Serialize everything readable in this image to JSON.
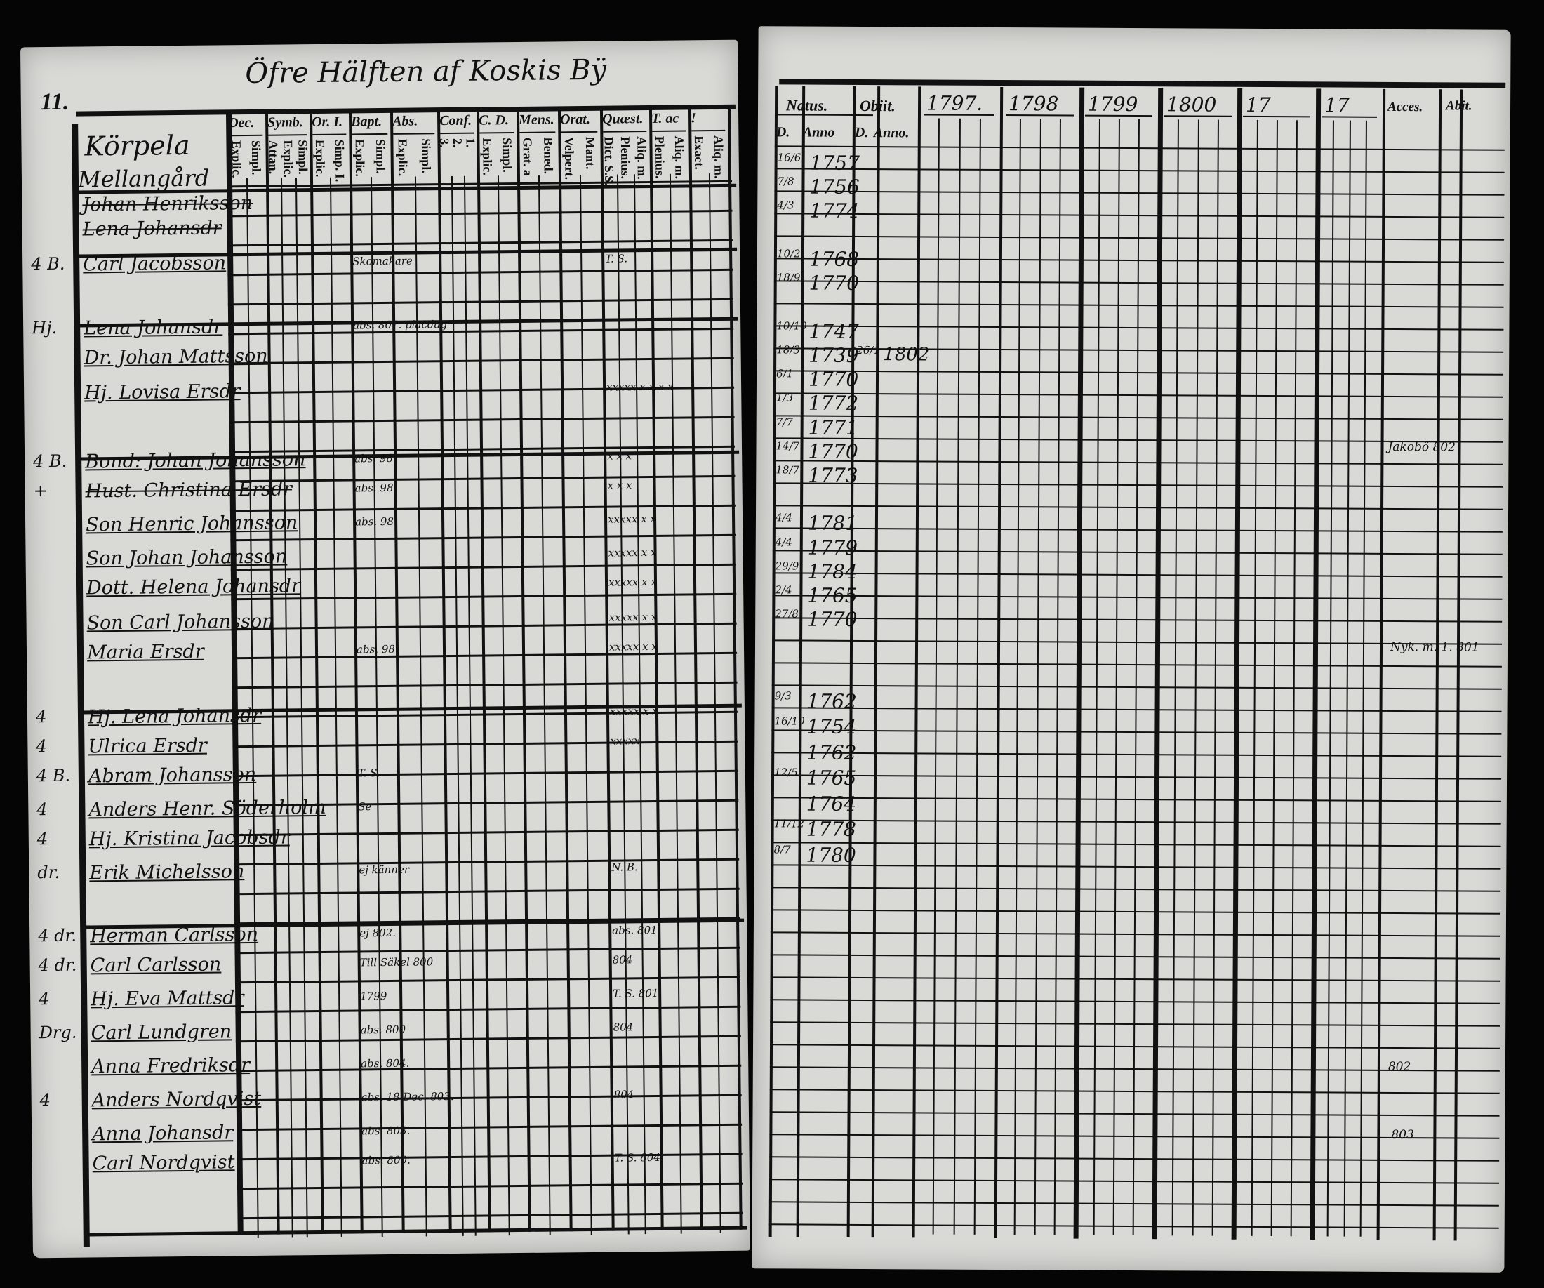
{
  "left_page": {
    "folio": "11.",
    "title": "Öfre Hälften af Koskis Bÿ",
    "farm": [
      "Körpela",
      "Mellangård"
    ],
    "columns": [
      {
        "head": "Dec.",
        "sub": [
          "Simpl.",
          "Explic."
        ]
      },
      {
        "head": "Symb.",
        "sub": [
          "Simpl.",
          "Explic.",
          "Attan."
        ]
      },
      {
        "head": "Or. I.",
        "sub": [
          "Simp. I.",
          "Explic."
        ]
      },
      {
        "head": "Bapt.",
        "sub": [
          "Simpl.",
          "Explic."
        ]
      },
      {
        "head": "Abs.",
        "sub": [
          "Simpl.",
          "Explic."
        ]
      },
      {
        "head": "Conf.",
        "sub": [
          "1.",
          "2.",
          "3."
        ]
      },
      {
        "head": "C. D.",
        "sub": [
          "Simpl.",
          "Explic."
        ]
      },
      {
        "head": "Mens.",
        "sub": [
          "Bened.",
          "Grat. a"
        ]
      },
      {
        "head": "Orat.",
        "sub": [
          "Mant.",
          "Velpert."
        ]
      },
      {
        "head": "Quæst.",
        "sub": [
          "Aliq. m.",
          "Plenius.",
          "Dict. S.S."
        ]
      },
      {
        "head": "T. ac",
        "sub": [
          "Aliq. m.",
          "Plenius."
        ]
      },
      {
        "head": "!",
        "sub": [
          "Aliq. m.",
          "Exact."
        ]
      }
    ],
    "rows": [
      {
        "mark": "",
        "name": "Johan Henriksson",
        "note": ""
      },
      {
        "mark": "",
        "name": "Lena Johansdr",
        "note": ""
      },
      {
        "mark": "4 B.",
        "name": "Carl Jacobsson",
        "note": "Skomakare",
        "extra": "T. S."
      },
      {
        "mark": "Hj.",
        "name": "Lena Johansdr",
        "note": "abs. 801. placdag"
      },
      {
        "mark": "",
        "name": "Dr. Johan Mattsson",
        "note": ""
      },
      {
        "mark": "",
        "name": "Hj. Lovisa Ersdr",
        "note": "",
        "extra": "xxxxx  x x   x x"
      },
      {
        "mark": "4 B.",
        "name": "Bond: Johan Johansson",
        "note": "abs. 98",
        "extra": "x x x"
      },
      {
        "mark": "+",
        "name": "Hust. Christina Ersdr",
        "note": "abs. 98",
        "extra": "x x x"
      },
      {
        "mark": "",
        "name": "Son Henric Johansson",
        "note": "abs. 98",
        "extra": "xxxxx  x x"
      },
      {
        "mark": "",
        "name": "Son Johan Johansson",
        "note": "",
        "extra": "xxxxx  x x"
      },
      {
        "mark": "",
        "name": "Dott. Helena Johansdr",
        "note": "",
        "extra": "xxxxx  x x"
      },
      {
        "mark": "",
        "name": "Son Carl Johansson",
        "note": "",
        "extra": "xxxxx  x x"
      },
      {
        "mark": "",
        "name": "Maria Ersdr",
        "note": "abs. 98.",
        "extra": "xxxxx  x x"
      },
      {
        "mark": "4",
        "name": "Hj. Lena Johansdr",
        "note": "",
        "extra": "xxxxx  x x"
      },
      {
        "mark": "4",
        "name": "Ulrica Ersdr",
        "note": "",
        "extra": "xxxxx"
      },
      {
        "mark": "4 B.",
        "name": "Abram Johansson",
        "note": "T. S."
      },
      {
        "mark": "4",
        "name": "Anders Henr. Söderholm",
        "note": "Se"
      },
      {
        "mark": "4",
        "name": "Hj. Kristina Jacobsdr",
        "note": ""
      },
      {
        "mark": "dr.",
        "name": "Erik Michelsson",
        "note": "ej känner",
        "extra": "N. B."
      },
      {
        "mark": "4 dr.",
        "name": "Herman Carlsson",
        "note": "ej 802.",
        "extra": "abs. 801."
      },
      {
        "mark": "4 dr.",
        "name": "Carl Carlsson",
        "note": "Till Säkel 800",
        "extra": "804"
      },
      {
        "mark": "4",
        "name": "Hj. Eva Mattsdr",
        "note": "1799",
        "extra": "T. S.  801"
      },
      {
        "mark": "Drg.",
        "name": "Carl Lundgren",
        "note": "abs. 800",
        "extra": "804"
      },
      {
        "mark": "",
        "name": "Anna Fredriksdr",
        "note": "abs. 804."
      },
      {
        "mark": "4",
        "name": "Anders Nordqvist",
        "note": "abs. 18 Dec. 803.",
        "extra": "804"
      },
      {
        "mark": "",
        "name": "Anna Johansdr",
        "note": "abs. 803."
      },
      {
        "mark": "",
        "name": "Carl Nordqvist",
        "note": "abs. 800.",
        "extra": "T. S. 804"
      }
    ]
  },
  "right_page": {
    "headers": {
      "natus": "Natus.",
      "natus_d": "D.",
      "natus_anno": "Anno",
      "obiit": "Obiit.",
      "obiit_d": "D.",
      "obiit_anno": "Anno.",
      "years": [
        "1797.",
        "1798",
        "1799",
        "1800",
        "17",
        "17"
      ],
      "accessit": "Acces.",
      "abiit": "Abit."
    },
    "births": [
      {
        "day": "16/6",
        "year": "1757"
      },
      {
        "day": "7/8",
        "year": "1756"
      },
      {
        "day": "4/3",
        "year": "1774"
      },
      {
        "day": "",
        "year": ""
      },
      {
        "day": "10/2",
        "year": "1768"
      },
      {
        "day": "18/9",
        "year": "1770"
      },
      {
        "day": "",
        "year": ""
      },
      {
        "day": "10/10",
        "year": "1747"
      },
      {
        "day": "18/3",
        "year": "1739",
        "obiit_day": "26/1",
        "obiit_year": "1802"
      },
      {
        "day": "6/1",
        "year": "1770"
      },
      {
        "day": "1/3",
        "year": "1772"
      },
      {
        "day": "7/7",
        "year": "1771"
      },
      {
        "day": "14/7",
        "year": "1770"
      },
      {
        "day": "18/7",
        "year": "1773"
      },
      {
        "day": "",
        "year": ""
      },
      {
        "day": "4/4",
        "year": "1781"
      },
      {
        "day": "4/4",
        "year": "1779"
      },
      {
        "day": "29/9",
        "year": "1784"
      },
      {
        "day": "2/4",
        "year": "1765"
      },
      {
        "day": "27/8",
        "year": "1770"
      },
      {
        "day": "",
        "year": ""
      },
      {
        "day": "9/3",
        "year": "1762"
      },
      {
        "day": "16/10",
        "year": "1754"
      },
      {
        "day": "",
        "year": "1762"
      },
      {
        "day": "12/5",
        "year": "1765"
      },
      {
        "day": "",
        "year": "1764"
      },
      {
        "day": "11/12",
        "year": "1778"
      },
      {
        "day": "8/7",
        "year": "1780"
      }
    ],
    "margin_notes": [
      "Jakobö 802",
      "Nyk. m. 1. 801",
      "802",
      "803"
    ]
  }
}
